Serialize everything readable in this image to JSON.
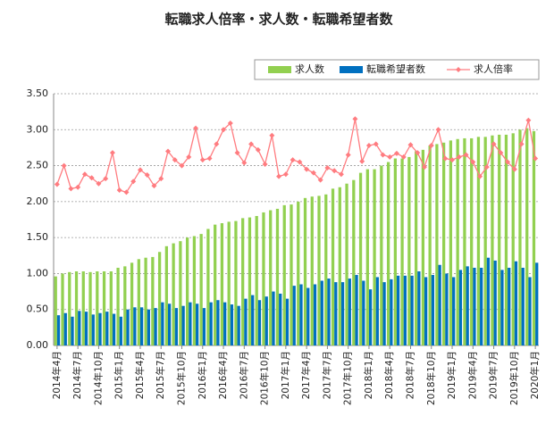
{
  "chart_data": {
    "type": "bar_line",
    "title": "転職求人倍率・求人数・転職希望者数",
    "categories": [
      "2014年4月",
      null,
      null,
      "2014年7月",
      null,
      null,
      "2014年10月",
      null,
      null,
      "2015年1月",
      null,
      null,
      "2015年4月",
      null,
      null,
      "2015年7月",
      null,
      null,
      "2015年10月",
      null,
      null,
      "2016年1月",
      null,
      null,
      "2016年4月",
      null,
      null,
      "2016年7月",
      null,
      null,
      "2016年10月",
      null,
      null,
      "2017年1月",
      null,
      null,
      "2017年4月",
      null,
      null,
      "2017年7月",
      null,
      null,
      "2017年10月",
      null,
      null,
      "2018年1月",
      null,
      null,
      "2018年4月",
      null,
      null,
      "2018年7月",
      null,
      null,
      "2018年10月",
      null,
      null,
      "2019年1月",
      null,
      null,
      "2019年4月",
      null,
      null,
      "2019年7月",
      null,
      null,
      "2019年10月",
      null,
      null,
      "2020年1月"
    ],
    "series": [
      {
        "name": "求人数",
        "kind": "bar",
        "color": "#92d050",
        "values": [
          0.96,
          1.0,
          1.02,
          1.03,
          1.03,
          1.02,
          1.03,
          1.03,
          1.03,
          1.08,
          1.1,
          1.15,
          1.2,
          1.22,
          1.23,
          1.3,
          1.38,
          1.42,
          1.45,
          1.5,
          1.52,
          1.55,
          1.62,
          1.68,
          1.7,
          1.72,
          1.73,
          1.77,
          1.78,
          1.8,
          1.85,
          1.88,
          1.9,
          1.95,
          1.96,
          2.0,
          2.05,
          2.07,
          2.08,
          2.1,
          2.18,
          2.2,
          2.25,
          2.3,
          2.4,
          2.45,
          2.45,
          2.5,
          2.55,
          2.6,
          2.6,
          2.62,
          2.7,
          2.72,
          2.78,
          2.8,
          2.82,
          2.85,
          2.87,
          2.88,
          2.88,
          2.9,
          2.9,
          2.92,
          2.93,
          2.93,
          2.95,
          3.0,
          3.02,
          2.98
        ]
      },
      {
        "name": "転職希望者数",
        "kind": "bar",
        "color": "#0070c0",
        "values": [
          0.42,
          0.45,
          0.4,
          0.48,
          0.47,
          0.43,
          0.45,
          0.47,
          0.44,
          0.4,
          0.5,
          0.53,
          0.53,
          0.5,
          0.52,
          0.6,
          0.58,
          0.52,
          0.55,
          0.6,
          0.58,
          0.52,
          0.6,
          0.63,
          0.6,
          0.57,
          0.55,
          0.65,
          0.7,
          0.63,
          0.68,
          0.75,
          0.72,
          0.65,
          0.83,
          0.85,
          0.8,
          0.85,
          0.9,
          0.93,
          0.88,
          0.88,
          0.93,
          0.98,
          0.9,
          0.78,
          0.95,
          0.88,
          0.92,
          0.97,
          0.97,
          0.97,
          1.03,
          0.95,
          0.98,
          1.12,
          1.0,
          0.95,
          1.05,
          1.1,
          1.08,
          1.08,
          1.22,
          1.18,
          1.05,
          1.08,
          1.17,
          1.08,
          0.95,
          1.15
        ]
      },
      {
        "name": "求人倍率",
        "kind": "line",
        "color": "#ff7c80",
        "values": [
          2.24,
          2.5,
          2.18,
          2.2,
          2.38,
          2.33,
          2.25,
          2.32,
          2.68,
          2.16,
          2.13,
          2.28,
          2.44,
          2.37,
          2.22,
          2.32,
          2.7,
          2.58,
          2.5,
          2.62,
          3.02,
          2.58,
          2.6,
          2.8,
          3.0,
          3.09,
          2.68,
          2.54,
          2.8,
          2.72,
          2.52,
          2.92,
          2.35,
          2.38,
          2.58,
          2.55,
          2.45,
          2.4,
          2.3,
          2.47,
          2.43,
          2.38,
          2.65,
          3.15,
          2.56,
          2.78,
          2.8,
          2.65,
          2.62,
          2.67,
          2.62,
          2.79,
          2.68,
          2.48,
          2.78,
          3.0,
          2.6,
          2.58,
          2.62,
          2.65,
          2.55,
          2.35,
          2.48,
          2.8,
          2.68,
          2.55,
          2.45,
          2.8,
          3.13,
          2.6
        ]
      }
    ],
    "ylim": [
      0,
      3.5
    ],
    "yticks": [
      {
        "value": 0,
        "label": "0.00"
      },
      {
        "value": 0.5,
        "label": "0.50"
      },
      {
        "value": 1,
        "label": "1.00"
      },
      {
        "value": 1.5,
        "label": "1.50"
      },
      {
        "value": 2,
        "label": "2.00"
      },
      {
        "value": 2.5,
        "label": "2.50"
      },
      {
        "value": 3,
        "label": "3.00"
      },
      {
        "value": 3.5,
        "label": "3.50"
      }
    ],
    "grid": true
  }
}
